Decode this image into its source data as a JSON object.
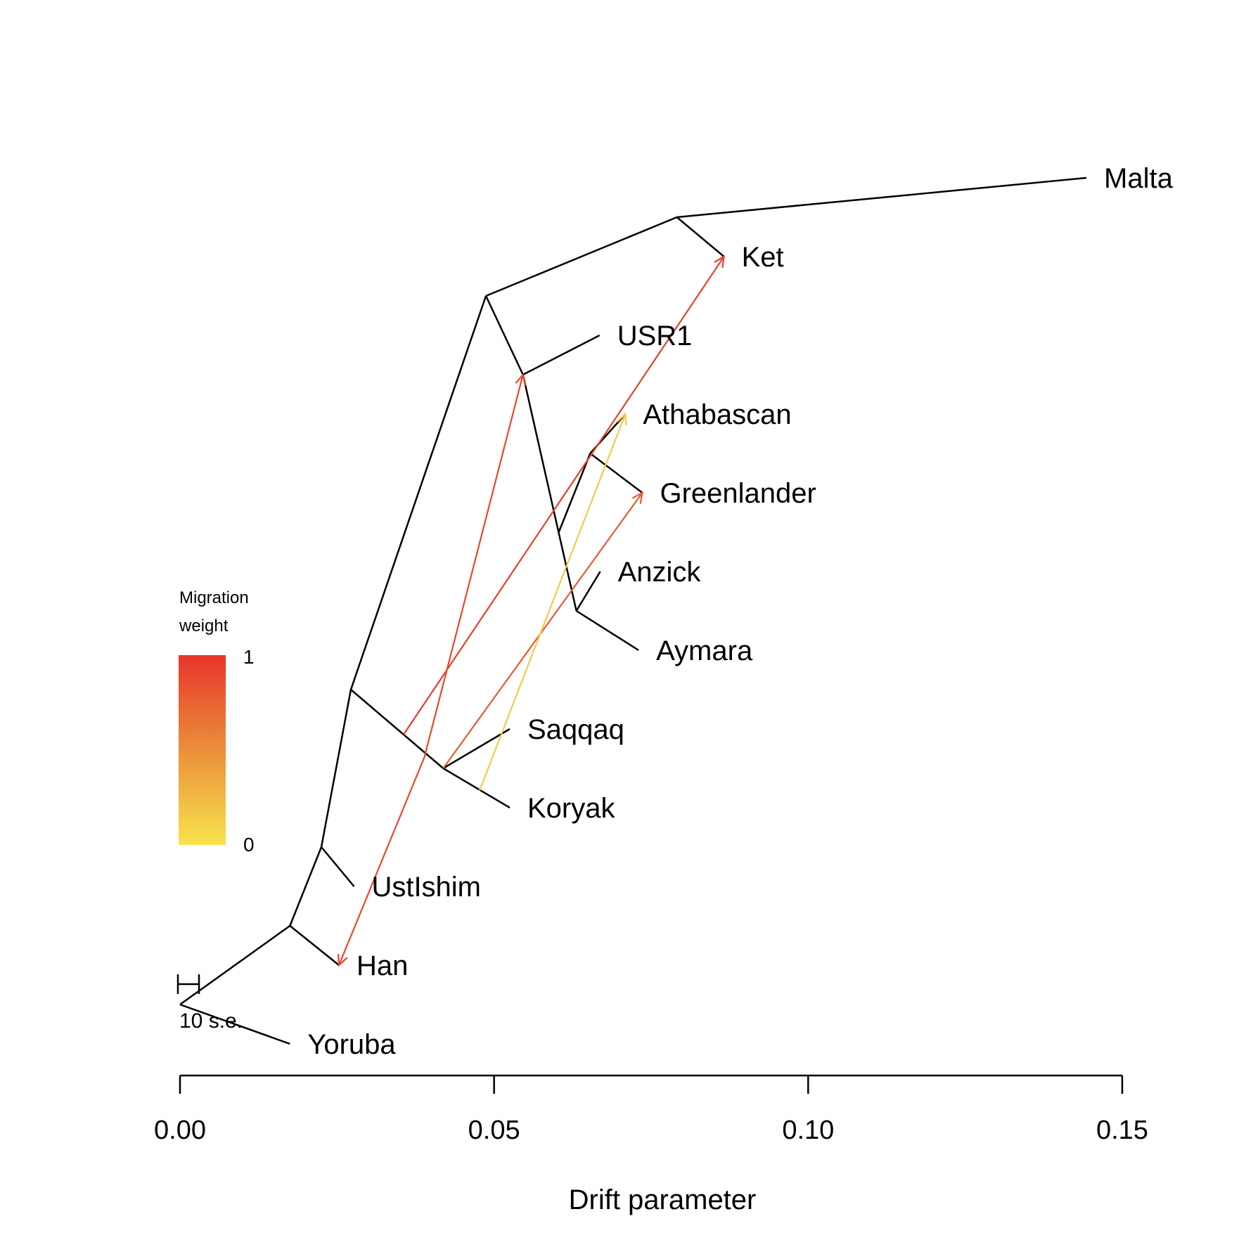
{
  "chart_data": {
    "type": "tree",
    "xlabel": "Drift parameter",
    "xlim": [
      0.0,
      0.15
    ],
    "x_ticks": [
      "0.00",
      "0.05",
      "0.10",
      "0.15"
    ],
    "x_tick_values": [
      0.0,
      0.05,
      0.1,
      0.15
    ],
    "nodes": [
      {
        "id": "root",
        "drift": 0.0,
        "row": 10.5
      },
      {
        "id": "n1",
        "drift": 0.0175,
        "row": 9.5
      },
      {
        "id": "n2",
        "drift": 0.0225,
        "row": 8.5
      },
      {
        "id": "n3",
        "drift": 0.0272,
        "row": 6.5
      },
      {
        "id": "n4",
        "drift": 0.0487,
        "row": 1.5
      },
      {
        "id": "n5",
        "drift": 0.0791,
        "row": 0.5
      },
      {
        "id": "n6",
        "drift": 0.0546,
        "row": 2.5
      },
      {
        "id": "n7",
        "drift": 0.0603,
        "row": 4.5
      },
      {
        "id": "n8",
        "drift": 0.0653,
        "row": 3.5
      },
      {
        "id": "n9",
        "drift": 0.0631,
        "row": 5.5
      },
      {
        "id": "n10",
        "drift": 0.0419,
        "row": 7.5
      },
      {
        "id": "n11",
        "drift": 0.0356,
        "row": 7.07
      }
    ],
    "leaves": [
      {
        "id": "Malta",
        "label": "Malta",
        "drift": 0.1443,
        "row": 0
      },
      {
        "id": "Ket",
        "label": "Ket",
        "drift": 0.0866,
        "row": 1
      },
      {
        "id": "USR1",
        "label": "USR1",
        "drift": 0.0668,
        "row": 2
      },
      {
        "id": "Athabascan",
        "label": "Athabascan",
        "drift": 0.0709,
        "row": 3
      },
      {
        "id": "Greenlander",
        "label": "Greenlander",
        "drift": 0.0736,
        "row": 4
      },
      {
        "id": "Anzick",
        "label": "Anzick",
        "drift": 0.0669,
        "row": 5
      },
      {
        "id": "Aymara",
        "label": "Aymara",
        "drift": 0.073,
        "row": 6
      },
      {
        "id": "Saqqaq",
        "label": "Saqqaq",
        "drift": 0.0525,
        "row": 7
      },
      {
        "id": "Koryak",
        "label": "Koryak",
        "drift": 0.0525,
        "row": 8
      },
      {
        "id": "UstIshim",
        "label": "UstIshim",
        "drift": 0.0277,
        "row": 9
      },
      {
        "id": "Han",
        "label": "Han",
        "drift": 0.0253,
        "row": 10
      },
      {
        "id": "Yoruba",
        "label": "Yoruba",
        "drift": 0.0175,
        "row": 11
      }
    ],
    "edges": [
      [
        "root",
        "n1"
      ],
      [
        "root",
        "Yoruba"
      ],
      [
        "n1",
        "n2"
      ],
      [
        "n1",
        "Han"
      ],
      [
        "n2",
        "n3"
      ],
      [
        "n2",
        "UstIshim"
      ],
      [
        "n3",
        "n4"
      ],
      [
        "n3",
        "n10"
      ],
      [
        "n4",
        "n5"
      ],
      [
        "n4",
        "n6"
      ],
      [
        "n5",
        "Malta"
      ],
      [
        "n5",
        "Ket"
      ],
      [
        "n6",
        "USR1"
      ],
      [
        "n6",
        "n9"
      ],
      [
        "n7",
        "n8"
      ],
      [
        "n8",
        "Athabascan"
      ],
      [
        "n8",
        "Greenlander"
      ],
      [
        "n9",
        "Anzick"
      ],
      [
        "n9",
        "Aymara"
      ],
      [
        "n10",
        "Saqqaq"
      ],
      [
        "n10",
        "Koryak"
      ]
    ],
    "migrations": [
      {
        "from": {
          "drift": 0.0356,
          "row": 7.07
        },
        "to": "Ket",
        "weight": 0.95
      },
      {
        "from": {
          "drift": 0.0389,
          "row": 7.36
        },
        "to": "n6",
        "weight": 0.9
      },
      {
        "from": {
          "drift": 0.0389,
          "row": 7.36
        },
        "to": "Han",
        "weight": 0.9
      },
      {
        "from": {
          "drift": 0.0419,
          "row": 7.5
        },
        "to": "Greenlander",
        "weight": 0.8
      },
      {
        "from": {
          "drift": 0.0477,
          "row": 7.78
        },
        "to": "Athabascan",
        "weight": 0.15
      }
    ],
    "legend": {
      "title_line1": "Migration",
      "title_line2": "weight",
      "max_label": "1",
      "min_label": "0",
      "color_high": "#e8352a",
      "color_mid": "#eb8f3a",
      "color_low": "#f8e34d",
      "placement": "left-middle"
    },
    "scale_bar": {
      "label": "10 s.e."
    },
    "colors": {
      "tree": "#000000"
    }
  }
}
